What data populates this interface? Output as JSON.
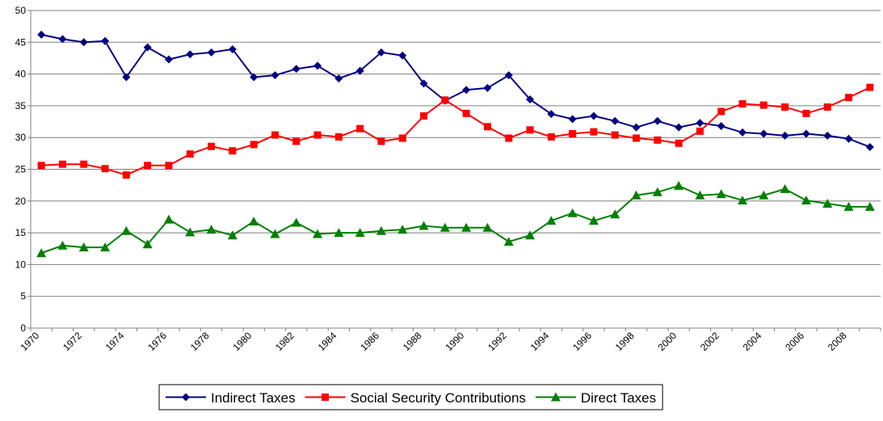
{
  "chart_data": {
    "type": "line",
    "categories": [
      "1970",
      null,
      "1972",
      null,
      "1974",
      null,
      "1976",
      null,
      "1978",
      null,
      "1980",
      null,
      "1982",
      null,
      "1984",
      null,
      "1986",
      null,
      "1988",
      null,
      "1990",
      null,
      "1992",
      null,
      "1994",
      null,
      "1996",
      null,
      "1998",
      null,
      "2000",
      null,
      "2002",
      null,
      "2004",
      null,
      "2006",
      null,
      "2008",
      null
    ],
    "series": [
      {
        "name": "Indirect Taxes",
        "color": "#000080",
        "marker": "diamond",
        "values": [
          46.2,
          45.5,
          45.0,
          45.2,
          39.5,
          44.2,
          42.3,
          43.1,
          43.4,
          43.9,
          39.5,
          39.8,
          40.8,
          41.3,
          39.3,
          40.5,
          43.4,
          42.9,
          38.5,
          35.8,
          37.5,
          37.8,
          39.8,
          36.0,
          33.7,
          32.9,
          33.4,
          32.6,
          31.6,
          32.6,
          31.6,
          32.3,
          31.8,
          30.8,
          30.6,
          30.3,
          30.6,
          30.3,
          29.8,
          28.5
        ]
      },
      {
        "name": "Social Security Contributions",
        "color": "#ff0000",
        "marker": "square",
        "values": [
          25.6,
          25.8,
          25.8,
          25.1,
          24.1,
          25.6,
          25.6,
          27.4,
          28.6,
          27.9,
          28.9,
          30.4,
          29.4,
          30.4,
          30.1,
          31.4,
          29.4,
          29.9,
          33.4,
          35.9,
          33.8,
          31.7,
          29.9,
          31.2,
          30.1,
          30.6,
          30.9,
          30.4,
          29.9,
          29.6,
          29.1,
          31.0,
          34.1,
          35.3,
          35.1,
          34.8,
          33.8,
          34.8,
          36.3,
          37.9
        ]
      },
      {
        "name": "Direct Taxes",
        "color": "#008000",
        "marker": "triangle",
        "values": [
          11.8,
          13.0,
          12.7,
          12.7,
          15.3,
          13.2,
          17.1,
          15.1,
          15.5,
          14.6,
          16.8,
          14.8,
          16.6,
          14.8,
          15.0,
          15.0,
          15.3,
          15.5,
          16.1,
          15.8,
          15.8,
          15.8,
          13.6,
          14.6,
          16.9,
          18.1,
          16.9,
          17.9,
          20.9,
          21.4,
          22.4,
          20.9,
          21.1,
          20.1,
          20.9,
          21.9,
          20.1,
          19.6,
          19.1,
          19.1
        ]
      }
    ],
    "ylim": [
      0,
      50
    ],
    "yticks": [
      0,
      5,
      10,
      15,
      20,
      25,
      30,
      35,
      40,
      45,
      50
    ],
    "grid": true,
    "legend": "bottom"
  }
}
